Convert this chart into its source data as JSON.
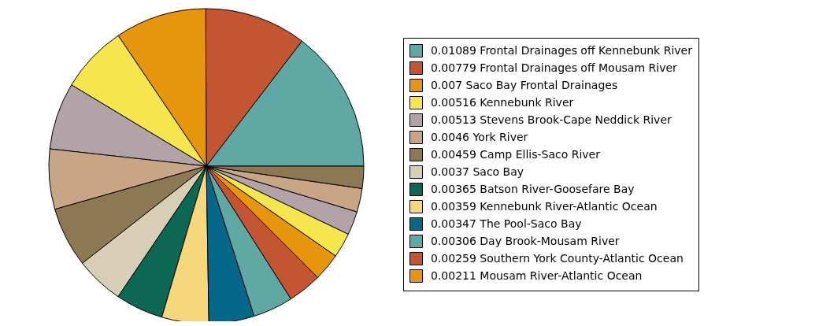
{
  "chart_data": {
    "type": "pie",
    "legend": "right",
    "categories": [
      "0.01089 Frontal Drainages off Kennebunk River",
      "0.00779 Frontal Drainages off Mousam River",
      "0.007 Saco Bay Frontal Drainages",
      "0.00516 Kennebunk River",
      "0.00513 Stevens Brook-Cape Neddick River",
      "0.0046 York River",
      "0.00459 Camp Ellis-Saco River",
      "0.0037 Saco Bay",
      "0.00365 Batson River-Goosefare Bay",
      "0.00359 Kennebunk River-Atlantic Ocean",
      "0.00347 The Pool-Saco Bay",
      "0.00306 Day Brook-Mousam River",
      "0.00259 Southern York County-Atlantic Ocean",
      "0.00211 Mousam River-Atlantic Ocean",
      null,
      null,
      null,
      null
    ],
    "values": [
      14.61,
      10.45,
      9.39,
      6.92,
      6.88,
      6.17,
      6.16,
      4.96,
      4.9,
      4.82,
      4.66,
      4.11,
      3.48,
      2.83,
      2.55,
      2.42,
      2.42,
      2.27
    ],
    "colors": [
      "#5fa8a3",
      "#c45533",
      "#e5960c",
      "#f5e64d",
      "#b2a3a8",
      "#c8a584",
      "#8c7853",
      "#d8cdb5",
      "#0c6753",
      "#f5d77c",
      "#05678a",
      "#5fa8a3",
      "#c45533",
      "#e5960c",
      "#f5e64d",
      "#b2a3a8",
      "#c8a584",
      "#8c7853"
    ]
  }
}
